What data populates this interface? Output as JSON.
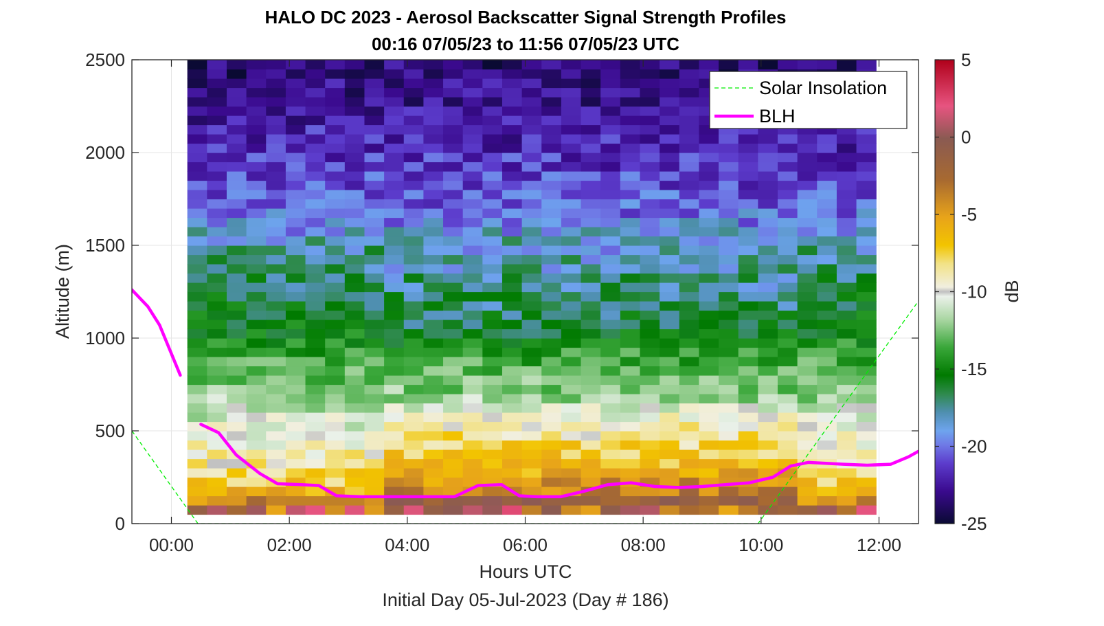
{
  "chart_data": {
    "type": "heatmap",
    "title": "HALO DC 2023 - Aerosol Backscatter Signal Strength Profiles",
    "subtitle": "00:16 07/05/23 to 11:56 07/05/23  UTC",
    "xlabel": "Hours UTC",
    "xlabel2": "Initial Day 05-Jul-2023 (Day # 186)",
    "ylabel": "Altitude (m)",
    "colorbar_label": "dB",
    "xlim": [
      -0.67,
      12.67
    ],
    "ylim": [
      0,
      2500
    ],
    "x_ticks": [
      0,
      2,
      4,
      6,
      8,
      10,
      12
    ],
    "x_tick_labels": [
      "00:00",
      "02:00",
      "04:00",
      "06:00",
      "08:00",
      "10:00",
      "12:00"
    ],
    "y_ticks": [
      0,
      500,
      1000,
      1500,
      2000,
      2500
    ],
    "y_tick_labels": [
      "0",
      "500",
      "1000",
      "1500",
      "2000",
      "2500"
    ],
    "clim": [
      -25,
      5
    ],
    "colorbar_ticks": [
      5,
      0,
      -5,
      -10,
      -15,
      -20,
      -25
    ],
    "colorbar_tick_labels": [
      "5",
      "0",
      "-5",
      "-10",
      "-15",
      "-20",
      "-25"
    ],
    "grid": true,
    "legend_placement": "top-right",
    "heatmap": {
      "x_start": 0.27,
      "x_end": 11.95,
      "n_columns": 35,
      "rows_altitude_bottom_to_top_m": [
        100,
        150,
        200,
        250,
        300,
        350,
        400,
        450,
        500,
        550,
        600,
        650,
        700,
        750,
        800,
        850,
        900,
        950,
        1000,
        1050,
        1100,
        1150,
        1200,
        1250,
        1300,
        1350,
        1400,
        1450,
        1500,
        1550,
        1600,
        1650,
        1700,
        1750,
        1800,
        1850,
        1900,
        1950,
        2000,
        2050,
        2100,
        2150,
        2200,
        2250,
        2300,
        2350,
        2400,
        2450,
        2500
      ],
      "profile_db_bottom_to_top": [
        -1,
        -4,
        -6,
        -7,
        -8,
        -8.5,
        -9,
        -9.5,
        -10,
        -10.5,
        -11,
        -11.5,
        -12,
        -12.5,
        -13,
        -13.5,
        -14,
        -14.5,
        -15,
        -15.5,
        -16,
        -16,
        -16.5,
        -16.5,
        -17,
        -17,
        -17.5,
        -17.5,
        -18,
        -18.5,
        -19,
        -19.5,
        -20,
        -20.5,
        -20.5,
        -21,
        -21,
        -21.5,
        -21.5,
        -22,
        -22,
        -22,
        -22.5,
        -22.5,
        -23,
        -23,
        -23,
        -23.5,
        -23.5
      ]
    },
    "series": [
      {
        "name": "BLH",
        "color": "#ff00ff",
        "segments": [
          {
            "x": [
              -0.67,
              -0.4,
              -0.2,
              0.15
            ],
            "y": [
              1260,
              1170,
              1070,
              800
            ]
          },
          {
            "x": [
              0.5,
              0.8,
              1.1,
              1.5,
              1.8,
              2.2,
              2.5,
              2.8,
              3.2,
              3.6,
              4.0,
              4.4,
              4.8,
              5.2,
              5.6,
              5.9,
              6.2,
              6.6,
              7.0,
              7.4,
              7.8,
              8.2,
              8.6,
              9.0,
              9.4,
              9.8,
              10.2,
              10.5,
              10.8,
              11.1,
              11.4,
              11.8,
              12.2,
              12.5,
              12.67
            ],
            "y": [
              535,
              490,
              370,
              270,
              215,
              210,
              205,
              150,
              145,
              145,
              145,
              145,
              145,
              205,
              210,
              150,
              145,
              145,
              175,
              210,
              220,
              200,
              195,
              200,
              210,
              220,
              250,
              310,
              330,
              325,
              320,
              315,
              320,
              360,
              390
            ]
          }
        ]
      },
      {
        "name": "Solar Insolation",
        "color": "#00ee00",
        "style": "dashed",
        "x": [
          -0.67,
          0.45,
          9.95,
          12.67
        ],
        "y": [
          500,
          0,
          0,
          1200
        ]
      }
    ],
    "colors": {
      "blh": "#ff00ff",
      "solar": "#00ee00",
      "axis": "#262626",
      "grid": "#e6e6e6"
    }
  }
}
